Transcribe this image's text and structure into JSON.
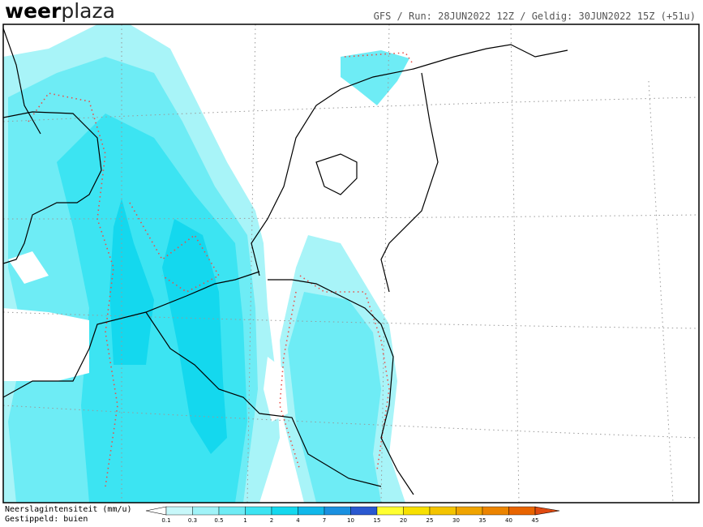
{
  "header": {
    "logo_bold": "weer",
    "logo_light": "plaza",
    "run_info": "GFS / Run: 28JUN2022 12Z / Geldig: 30JUN2022 15Z (+51u)"
  },
  "legend": {
    "title": "Neerslagintensiteit (mm/u)",
    "subtitle": "Gestippeld: buien",
    "ticks": [
      0.1,
      0.3,
      0.5,
      1,
      2,
      4,
      7,
      10,
      15,
      20,
      25,
      30,
      35,
      40,
      45
    ],
    "under_color": "#ffffff",
    "colors": [
      "#c8f8fa",
      "#a0f3f8",
      "#6eecf5",
      "#3ce4f2",
      "#14d8ee",
      "#10b8ea",
      "#1a90e0",
      "#2a58d0",
      "#ffff30",
      "#f8e000",
      "#f4c400",
      "#f0a400",
      "#ec8400",
      "#e86400"
    ],
    "over_color": "#e04a10"
  }
}
